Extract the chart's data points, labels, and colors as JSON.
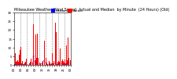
{
  "title": "Milwaukee Weather Wind Speed  Actual and Median  by Minute  (24 Hours) (Old)",
  "legend_actual_label": "Actual",
  "legend_median_label": "Median",
  "actual_color": "#ff0000",
  "median_color": "#0000ff",
  "background_color": "#ffffff",
  "grid_color": "#aaaaaa",
  "ylim": [
    0,
    30
  ],
  "yticks": [
    0,
    5,
    10,
    15,
    20,
    25,
    30
  ],
  "n_points": 1440,
  "num_vgridlines": 8,
  "title_fontsize": 3.5,
  "tick_fontsize": 2.8,
  "legend_fontsize": 3.0
}
